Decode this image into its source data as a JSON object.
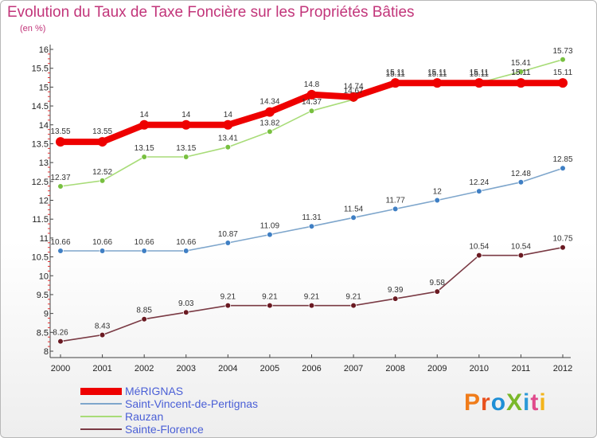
{
  "header": {
    "title": "Evolution du Taux de Taxe Foncière sur les Propriétés Bâties",
    "unit": "(en %)"
  },
  "brand": {
    "text": "ProXiti",
    "letter_colors": [
      "#f07c1a",
      "#e8511e",
      "#1e8fd6",
      "#7ab829",
      "#2d9ad8",
      "#e04a8c",
      "#f3b41b"
    ]
  },
  "chart_data": {
    "type": "line",
    "title": "Evolution du Taux de Taxe Foncière sur les Propriétés Bâties",
    "ylabel": "(en %)",
    "xlabel": "",
    "x": [
      "2000",
      "2001",
      "2002",
      "2003",
      "2004",
      "2005",
      "2006",
      "2007",
      "2008",
      "2009",
      "2010",
      "2011",
      "2012"
    ],
    "ylim": [
      8,
      16
    ],
    "yticks": [
      "8",
      "8.5",
      "9",
      "9.5",
      "10",
      "10.5",
      "11",
      "11.5",
      "12",
      "12.5",
      "13",
      "13.5",
      "14",
      "14.5",
      "15",
      "15.5",
      "16"
    ],
    "grid": false,
    "legend_position": "bottom-left",
    "series": [
      {
        "name": "MéRIGNAS",
        "values": [
          13.55,
          13.55,
          14,
          14,
          14,
          14.34,
          14.8,
          14.74,
          15.11,
          15.11,
          15.11,
          15.11,
          15.11
        ],
        "labels": [
          "13.55",
          "13.55",
          "14",
          "14",
          "14",
          "14.34",
          "14.8",
          "14.74",
          "15.11",
          "15.11",
          "15.11",
          "15.11",
          "15.11"
        ],
        "color": "#ee0000",
        "marker_color": "#ee0000",
        "emphasis": "bold"
      },
      {
        "name": "Saint-Vincent-de-Pertignas",
        "values": [
          10.66,
          10.66,
          10.66,
          10.66,
          10.87,
          11.09,
          11.31,
          11.54,
          11.77,
          12,
          12.24,
          12.48,
          12.85
        ],
        "labels": [
          "10.66",
          "10.66",
          "10.66",
          "10.66",
          "10.87",
          "11.09",
          "11.31",
          "11.54",
          "11.77",
          "12",
          "12.24",
          "12.48",
          "12.85"
        ],
        "color": "#7ea6cc",
        "marker_color": "#3f7fc4",
        "emphasis": "normal"
      },
      {
        "name": "Rauzan",
        "values": [
          12.37,
          12.52,
          13.15,
          13.15,
          13.41,
          13.82,
          14.37,
          14.67,
          15.11,
          15.11,
          15.11,
          15.41,
          15.73
        ],
        "labels": [
          "12.37",
          "12.52",
          "13.15",
          "13.15",
          "13.41",
          "13.82",
          "14.37",
          "14.67",
          "15.11",
          "15.11",
          "15.11",
          "15.41",
          "15.73"
        ],
        "extra_labels": {
          "11": "15.11"
        },
        "color": "#a8dc78",
        "marker_color": "#78c040",
        "emphasis": "normal"
      },
      {
        "name": "Sainte-Florence",
        "values": [
          8.26,
          8.43,
          8.85,
          9.03,
          9.21,
          9.21,
          9.21,
          9.21,
          9.39,
          9.58,
          10.54,
          10.54,
          10.75
        ],
        "labels": [
          "8.26",
          "8.43",
          "8.85",
          "9.03",
          "9.21",
          "9.21",
          "9.21",
          "9.21",
          "9.39",
          "9.58",
          "10.54",
          "10.54",
          "10.75"
        ],
        "color": "#7a3a44",
        "marker_color": "#6a1a22",
        "emphasis": "normal"
      }
    ]
  }
}
